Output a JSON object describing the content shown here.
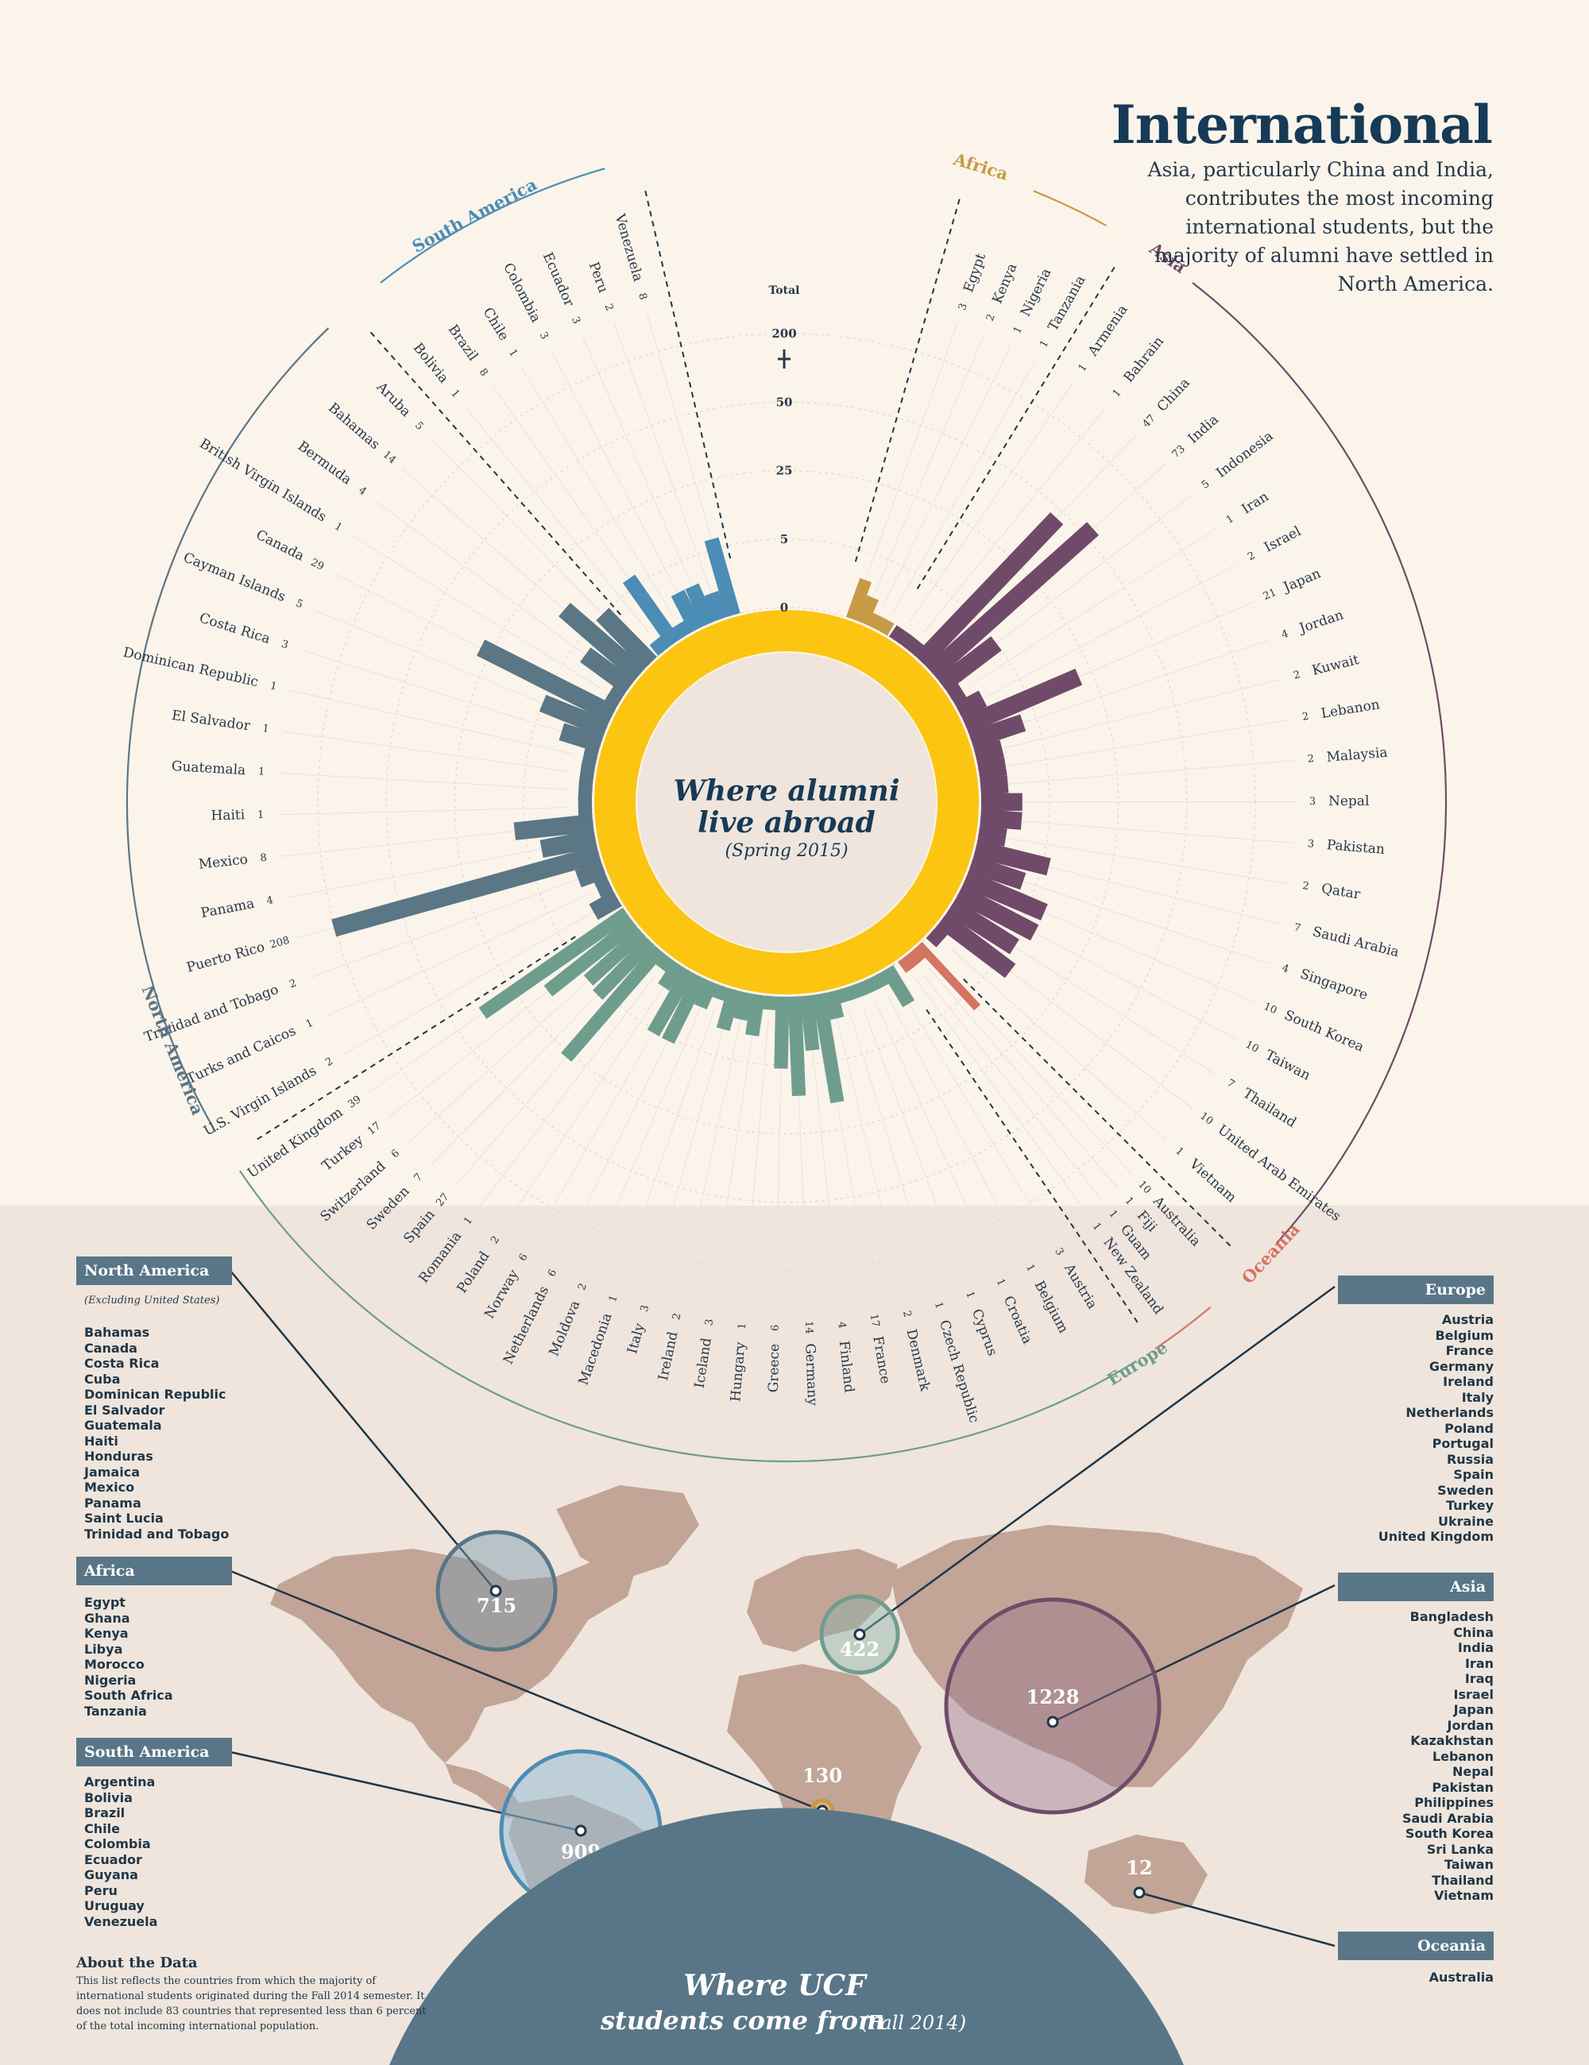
{
  "title": "International",
  "subtitle": "Asia, particularly China and India, contributes the most incoming international students, but the majority of alumni have settled in North America.",
  "center": {
    "line1": "Where alumni",
    "line2": "live abroad",
    "line3": "(Spring 2015)"
  },
  "bottom_banner": {
    "line1": "Where UCF",
    "line2": "students come from",
    "line3": "(Fall 2014)"
  },
  "about": {
    "title": "About the Data",
    "text": "This list reflects the countries from which the majority of international students originated during the Fall 2014 semester. It does not include 83 countries that represented less than 6 percent of the total incoming international population."
  },
  "colors": {
    "South America": "#4b8db4",
    "North America": "#5b7685",
    "Europe": "#6e9d8e",
    "Oceania": "#d47462",
    "Asia": "#704b69",
    "Africa": "#c79a45",
    "ring": "#fbc511",
    "bubble_outline": "#587687"
  },
  "chart_data": {
    "type": "radial-bar",
    "title": "Where alumni live abroad (Spring 2015)",
    "scale_label": "Total",
    "scale_ticks": [
      "0",
      "5",
      "25",
      "50",
      "200"
    ],
    "region_labels": [
      "South America",
      "Africa",
      "Asia",
      "Oceania",
      "Europe",
      "North America"
    ],
    "series": [
      {
        "region": "South America",
        "countries": [
          "Venezuela",
          "Peru",
          "Ecuador",
          "Colombia",
          "Chile",
          "Brazil",
          "Bolivia"
        ],
        "values": [
          8,
          2,
          3,
          3,
          1,
          8,
          1
        ]
      },
      {
        "region": "Africa",
        "countries": [
          "Egypt",
          "Kenya",
          "Nigeria",
          "Tanzania"
        ],
        "values": [
          3,
          2,
          1,
          1
        ]
      },
      {
        "region": "Asia",
        "countries": [
          "Armenia",
          "Bahrain",
          "China",
          "India",
          "Indonesia",
          "Iran",
          "Israel",
          "Japan",
          "Jordan",
          "Kuwait",
          "Lebanon",
          "Malaysia",
          "Nepal",
          "Pakistan",
          "Qatar",
          "Saudi Arabia",
          "Singapore",
          "South Korea",
          "Taiwan",
          "Thailand",
          "United Arab Emirates",
          "Vietnam"
        ],
        "values": [
          1,
          1,
          47,
          73,
          5,
          1,
          2,
          21,
          4,
          2,
          2,
          2,
          3,
          3,
          2,
          7,
          4,
          10,
          10,
          7,
          10,
          1
        ]
      },
      {
        "region": "Oceania",
        "countries": [
          "Australia",
          "Fiji",
          "Guam",
          "New Zealand"
        ],
        "values": [
          10,
          1,
          1,
          1
        ]
      },
      {
        "region": "Europe",
        "countries": [
          "Austria",
          "Belgium",
          "Croatia",
          "Cyprus",
          "Czech Republic",
          "Denmark",
          "France",
          "Finland",
          "Germany",
          "Greece",
          "Hungary",
          "Iceland",
          "Ireland",
          "Italy",
          "Macedonia",
          "Moldova",
          "Netherlands",
          "Norway",
          "Poland",
          "Romania",
          "Spain",
          "Sweden",
          "Switzerland",
          "Turkey",
          "United Kingdom"
        ],
        "values": [
          3,
          1,
          1,
          1,
          1,
          2,
          17,
          4,
          14,
          6,
          1,
          3,
          2,
          3,
          1,
          2,
          6,
          6,
          2,
          1,
          27,
          7,
          6,
          17,
          39
        ]
      },
      {
        "region": "North America",
        "countries": [
          "Aruba",
          "Bahamas",
          "Bermuda",
          "British Virgin Islands",
          "Canada",
          "Cayman Islands",
          "Costa Rica",
          "Dominican Republic",
          "El Salvador",
          "Guatemala",
          "Haiti",
          "Mexico",
          "Panama",
          "Puerto Rico",
          "Trinidad and Tobago",
          "Turks and Caicos",
          "U.S. Virgin Islands"
        ],
        "values": [
          5,
          14,
          4,
          1,
          29,
          5,
          3,
          1,
          1,
          1,
          1,
          8,
          4,
          208,
          2,
          1,
          2
        ]
      }
    ]
  },
  "map": {
    "regions": [
      {
        "name": "North America",
        "note": "(Excluding United States)",
        "total": "715",
        "countries": [
          "Bahamas",
          "Canada",
          "Costa Rica",
          "Cuba",
          "Dominican Republic",
          "El Salvador",
          "Guatemala",
          "Haiti",
          "Honduras",
          "Jamaica",
          "Mexico",
          "Panama",
          "Saint Lucia",
          "Trinidad and Tobago"
        ]
      },
      {
        "name": "Africa",
        "total": "130",
        "countries": [
          "Egypt",
          "Ghana",
          "Kenya",
          "Libya",
          "Morocco",
          "Nigeria",
          "South Africa",
          "Tanzania"
        ]
      },
      {
        "name": "South America",
        "total": "909",
        "countries": [
          "Argentina",
          "Bolivia",
          "Brazil",
          "Chile",
          "Colombia",
          "Ecuador",
          "Guyana",
          "Peru",
          "Uruguay",
          "Venezuela"
        ]
      },
      {
        "name": "Europe",
        "total": "422",
        "countries": [
          "Austria",
          "Belgium",
          "France",
          "Germany",
          "Ireland",
          "Italy",
          "Netherlands",
          "Poland",
          "Portugal",
          "Russia",
          "Spain",
          "Sweden",
          "Turkey",
          "Ukraine",
          "United Kingdom"
        ]
      },
      {
        "name": "Asia",
        "total": "1228",
        "countries": [
          "Bangladesh",
          "China",
          "India",
          "Iran",
          "Iraq",
          "Israel",
          "Japan",
          "Jordan",
          "Kazakhstan",
          "Lebanon",
          "Nepal",
          "Pakistan",
          "Philippines",
          "Saudi Arabia",
          "South Korea",
          "Sri Lanka",
          "Taiwan",
          "Thailand",
          "Vietnam"
        ]
      },
      {
        "name": "Oceania",
        "total": "12",
        "countries": [
          "Australia"
        ]
      }
    ]
  }
}
